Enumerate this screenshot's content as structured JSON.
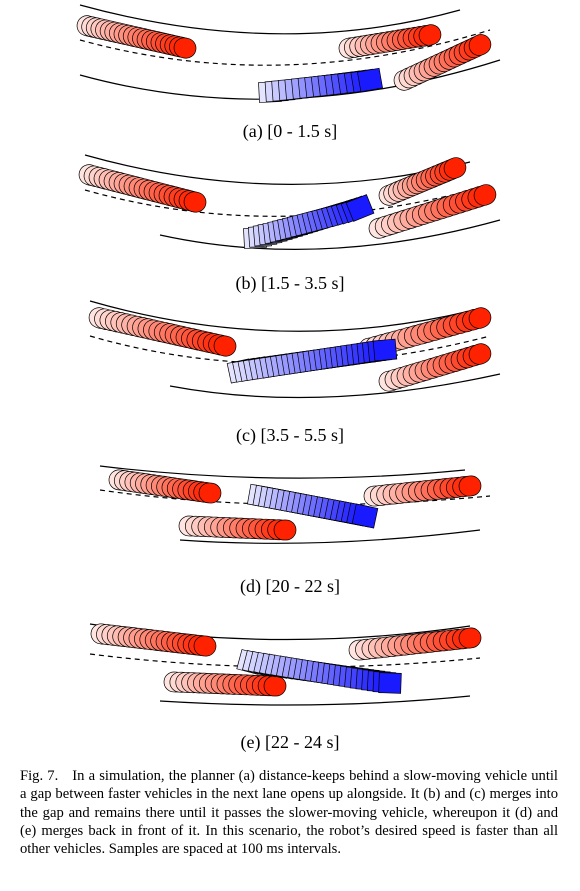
{
  "subfigures": [
    {
      "label": "(a) [0 - 1.5 s]"
    },
    {
      "label": "(b) [1.5 - 3.5 s]"
    },
    {
      "label": "(c) [3.5 - 5.5 s]"
    },
    {
      "label": "(d) [20 - 22 s]"
    },
    {
      "label": "(e) [22 - 24 s]"
    }
  ],
  "caption": {
    "label": "Fig. 7.",
    "text": "In a simulation, the planner (a) distance-keeps behind a slow-moving vehicle until a gap between faster vehicles in the next lane opens up alongside. It (b) and (c) merges into the gap and remains there until it passes the slower-moving vehicle, whereupon it (d) and (e) merges back in front of it. In this scenario, the robot’s desired speed is faster than all other vehicles. Samples are spaced at 100 ms intervals."
  },
  "colors": {
    "robot": "#1a1aff",
    "other": "#ff2200"
  }
}
